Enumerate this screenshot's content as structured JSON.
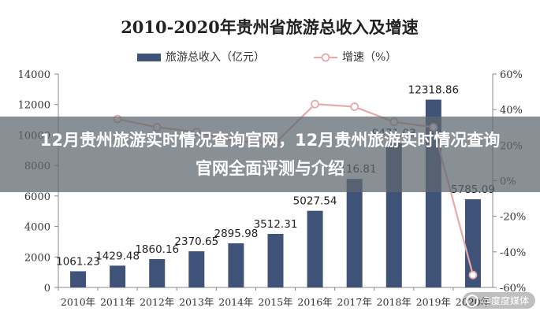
{
  "chart_data": {
    "type": "bar",
    "title": "2010-2020年贵州省旅游总收入及增速",
    "categories": [
      "2010年",
      "2011年",
      "2012年",
      "2013年",
      "2014年",
      "2015年",
      "2016年",
      "2017年",
      "2018年",
      "2019年",
      "2020年"
    ],
    "series": [
      {
        "name": "旅游总收入（亿元）",
        "type": "bar",
        "axis": "left",
        "color": "#3f5378",
        "values": [
          1061.23,
          1429.48,
          1860.16,
          2370.65,
          2895.98,
          3512.31,
          5027.54,
          7116.81,
          9471.03,
          12318.86,
          5785.09
        ],
        "data_labels": [
          "1061.23",
          "1429.48",
          "1860.16",
          "2370.65",
          "2895.98",
          "3512.31",
          "5027.54",
          "7116.81",
          "9471.03",
          "12318.86",
          "5785.09"
        ]
      },
      {
        "name": "增速（%）",
        "type": "line",
        "axis": "right",
        "color": "#e8a9a9",
        "values": [
          null,
          34.7,
          30.1,
          27.4,
          22.2,
          21.3,
          43.1,
          41.6,
          33.1,
          30.1,
          -53.0
        ]
      }
    ],
    "left_axis": {
      "min": 0,
      "max": 14000,
      "ticks": [
        "0",
        "2000",
        "4000",
        "6000",
        "8000",
        "10000",
        "12000",
        "14000"
      ]
    },
    "right_axis": {
      "min": -60,
      "max": 60,
      "ticks": [
        "-60%",
        "-40%",
        "-20%",
        "0%",
        "20%",
        "40%",
        "60%"
      ]
    },
    "grid": false,
    "legend": "top-center"
  },
  "banner": {
    "title": "12月贵州旅游实时情况查询官网，12月贵州旅游实时情况查询官网全面评测与介绍"
  },
  "watermark": {
    "text": "@度度媒体"
  }
}
